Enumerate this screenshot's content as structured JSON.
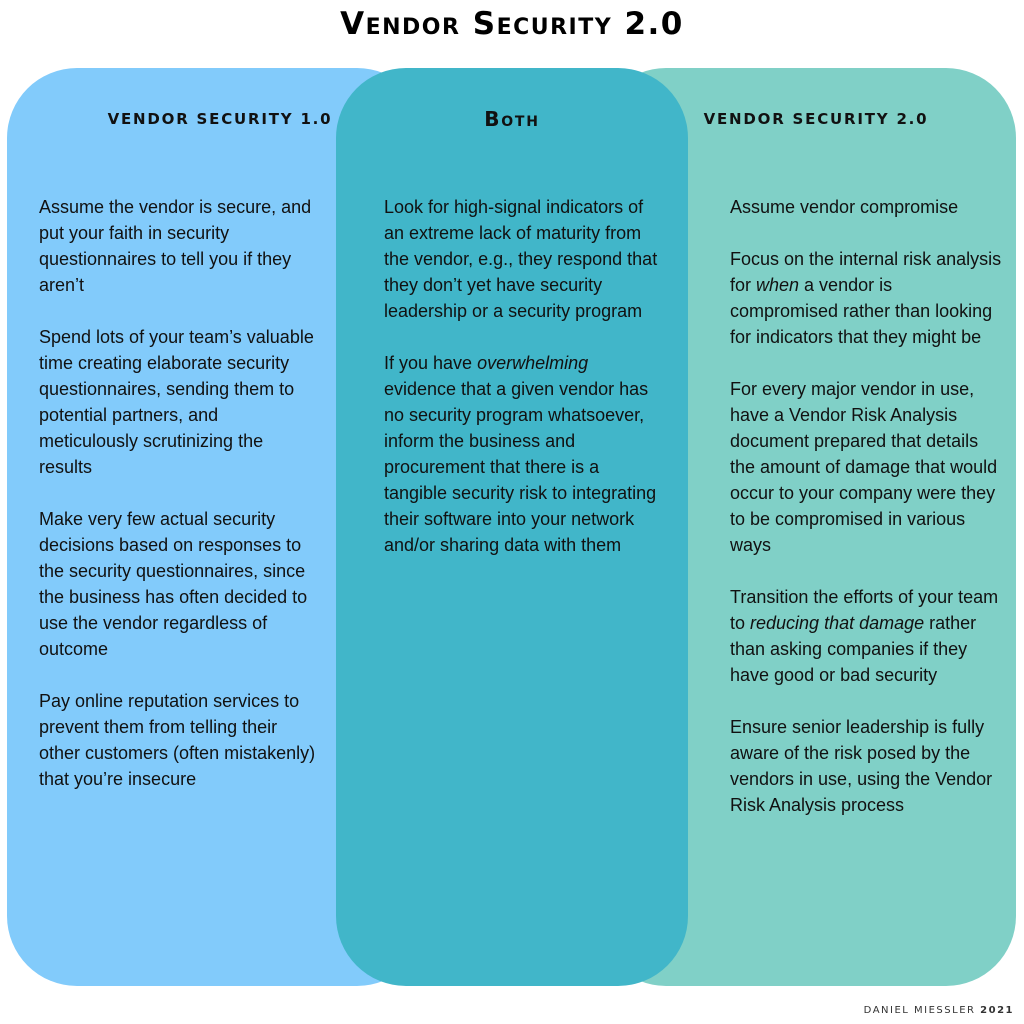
{
  "title": "Vendor Security 2.0",
  "colors": {
    "left_panel": "#82cbfb",
    "middle_panel": "#41b6c9",
    "right_panel": "#80d0c7"
  },
  "left": {
    "heading": "VENDOR SECURITY 1.0",
    "items": [
      "Assume the vendor is secure, and put your faith in security questionnaires to tell you if they aren’t",
      "Spend lots of your team’s valuable time creating elaborate security questionnaires, sending them to potential partners, and meticulously scrutinizing the results",
      "Make very few actual security decisions based on responses to the security questionnaires, since the business has often decided to use the vendor regardless of outcome",
      "Pay online reputation services to prevent them from telling their other customers (often mistakenly) that you’re insecure"
    ]
  },
  "middle": {
    "heading": "Both",
    "item1": "Look for high-signal indicators of an extreme lack of maturity from the vendor, e.g., they respond that they don’t yet have security leadership or a security program",
    "item2_before": "If you have ",
    "item2_emphasis": "overwhelming",
    "item2_after": " evidence that a given vendor has no security program whatsoever, inform the business and procurement that there is a tangible security risk to integrating their software into your network and/or sharing data with them"
  },
  "right": {
    "heading": "VENDOR SECURITY 2.0",
    "item1": "Assume vendor compromise",
    "item2_before": "Focus on the internal risk analysis for ",
    "item2_emphasis": "when",
    "item2_after": " a vendor is compromised rather than looking for indicators that they might be",
    "item3": "For every major vendor in use, have a Vendor Risk Analysis document prepared that details the amount of damage that would occur to your company were they to be compromised in various ways",
    "item4_before": "Transition the efforts of your team to ",
    "item4_emphasis": "reducing that damage",
    "item4_after": " rather than asking companies if they have good or bad security",
    "item5": "Ensure senior leadership is fully aware of the risk posed by the vendors in use, using the Vendor Risk Analysis process"
  },
  "footer": {
    "author": "DANIEL MIESSLER",
    "year": "2021"
  }
}
